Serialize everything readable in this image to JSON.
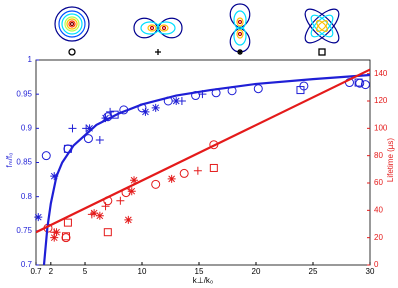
{
  "chart_data": {
    "type": "scatter",
    "xlabel": "k⊥/k₀",
    "ylabel": "fₘ/f₀",
    "y2label": "Lifetime (µs)",
    "xlim": [
      0.7,
      30
    ],
    "xticks": [
      0.7,
      2,
      5,
      10,
      15,
      20,
      25,
      30
    ],
    "ylim": [
      0.7,
      1
    ],
    "yticks": [
      0.7,
      0.75,
      0.8,
      0.85,
      0.9,
      0.95,
      1
    ],
    "y2lim": [
      0,
      150
    ],
    "y2ticks": [
      0,
      20,
      40,
      60,
      80,
      100,
      120,
      140
    ],
    "series": [
      {
        "type": "scatter",
        "marker": "circle",
        "color": "#1f1fd6",
        "axis": "y",
        "x": [
          1.6,
          3.5,
          5.3,
          7.0,
          8.4,
          10,
          12.3,
          14.7,
          16.5,
          17.9,
          20.2,
          24.2,
          28.2,
          29.1,
          29.6
        ],
        "values": [
          0.86,
          0.87,
          0.885,
          0.917,
          0.927,
          0.93,
          0.94,
          0.948,
          0.952,
          0.955,
          0.958,
          0.962,
          0.967,
          0.966,
          0.964
        ]
      },
      {
        "type": "scatter",
        "marker": "plus",
        "color": "#1f1fd6",
        "axis": "y",
        "x": [
          3.9,
          5.1,
          6.3,
          7.2,
          13.5,
          15.3
        ],
        "values": [
          0.9,
          0.9,
          0.883,
          0.924,
          0.94,
          0.95
        ]
      },
      {
        "type": "scatter",
        "marker": "asterisk",
        "color": "#1f1fd6",
        "axis": "y",
        "x": [
          0.9,
          2.3,
          5.4,
          6.8,
          10.3,
          11.2,
          13
        ],
        "values": [
          0.77,
          0.83,
          0.9,
          0.915,
          0.924,
          0.93,
          0.94
        ]
      },
      {
        "type": "scatter",
        "marker": "square",
        "color": "#1f1fd6",
        "axis": "y",
        "x": [
          3.5,
          7.6,
          23.9,
          29.0
        ],
        "values": [
          0.87,
          0.92,
          0.956,
          0.967
        ]
      },
      {
        "type": "scatter",
        "marker": "circle",
        "color": "#e41a1a",
        "axis": "y2",
        "x": [
          1.75,
          3.33,
          7.0,
          8.6,
          11.2,
          13.7,
          16.3
        ],
        "values": [
          27,
          20,
          47,
          53,
          59,
          67,
          88
        ]
      },
      {
        "type": "scatter",
        "marker": "plus",
        "color": "#e41a1a",
        "axis": "y2",
        "x": [
          2.3,
          5.6,
          6.8,
          8.1,
          14.9
        ],
        "values": [
          24,
          37,
          43,
          47,
          69
        ]
      },
      {
        "type": "scatter",
        "marker": "asterisk",
        "color": "#e41a1a",
        "axis": "y2",
        "x": [
          2.3,
          2.5,
          5.8,
          6.3,
          8.8,
          9.3,
          9.1,
          12.6
        ],
        "values": [
          20,
          24,
          38,
          36,
          33,
          62,
          54,
          63
        ]
      },
      {
        "type": "scatter",
        "marker": "square",
        "color": "#e41a1a",
        "axis": "y2",
        "x": [
          3.5,
          3.33,
          7.0,
          16.3
        ],
        "values": [
          31,
          21,
          24,
          71
        ]
      },
      {
        "type": "line",
        "color": "#1f1fd6",
        "axis": "y",
        "x": [
          1.4,
          1.7,
          2,
          2.5,
          3,
          4,
          5,
          6,
          8,
          10,
          13,
          16,
          20,
          25,
          30
        ],
        "values": [
          0.7,
          0.755,
          0.79,
          0.83,
          0.85,
          0.875,
          0.89,
          0.905,
          0.922,
          0.935,
          0.948,
          0.956,
          0.965,
          0.972,
          0.978
        ]
      },
      {
        "type": "line",
        "color": "#e41a1a",
        "axis": "y2",
        "x": [
          0.7,
          30
        ],
        "values": [
          24,
          143
        ]
      }
    ]
  }
}
